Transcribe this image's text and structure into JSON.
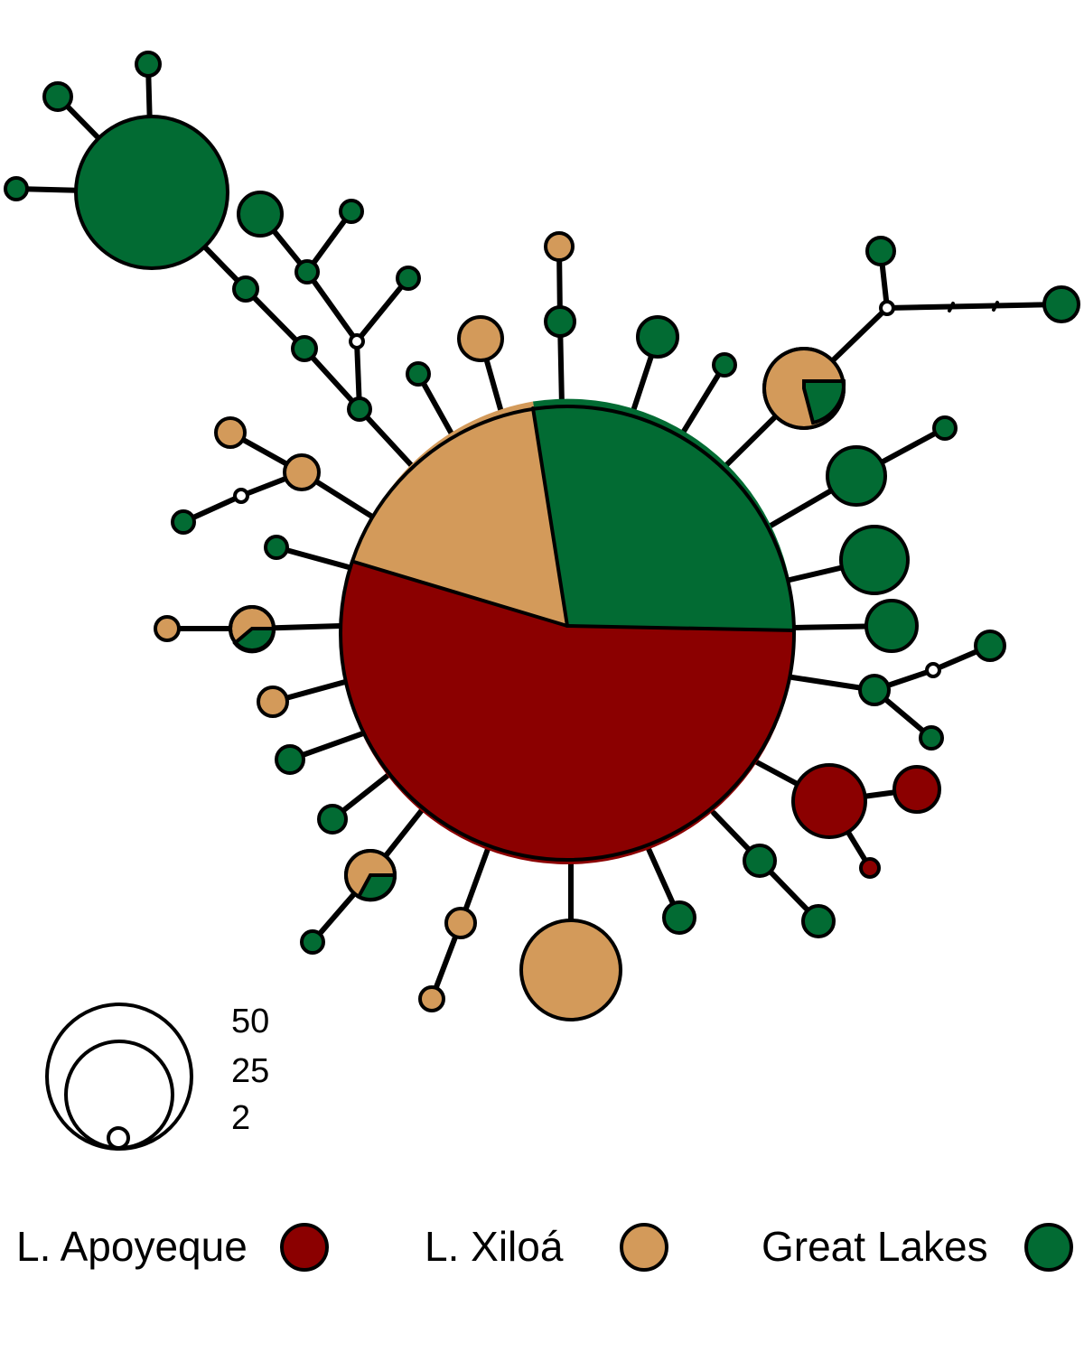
{
  "colors": {
    "apoyeque": "#8b0000",
    "xiloa": "#d39a5a",
    "great_lakes": "#026b33",
    "median_vector": "#ffffff"
  },
  "size_scale": {
    "labels": [
      "50",
      "25",
      "2"
    ]
  },
  "legend": [
    {
      "key": "apoyeque",
      "label": "L. Apoyeque"
    },
    {
      "key": "xiloa",
      "label": "L. Xiloá"
    },
    {
      "key": "great_lakes",
      "label": "Great Lakes"
    }
  ],
  "haplotypes": [
    {
      "id": "central",
      "composition": [
        {
          "group": "apoyeque",
          "fraction": 0.52
        },
        {
          "group": "xiloa",
          "fraction": 0.2
        },
        {
          "group": "great_lakes",
          "fraction": 0.28
        }
      ]
    },
    {
      "id": "gl-large-nw",
      "composition": [
        {
          "group": "great_lakes",
          "fraction": 1
        }
      ]
    },
    {
      "id": "xiloa-large-s",
      "composition": [
        {
          "group": "xiloa",
          "fraction": 1
        }
      ]
    },
    {
      "id": "apoyeque-se",
      "composition": [
        {
          "group": "apoyeque",
          "fraction": 1
        }
      ]
    },
    {
      "id": "mixed-ne",
      "composition": [
        {
          "group": "xiloa",
          "fraction": 0.75
        },
        {
          "group": "great_lakes",
          "fraction": 0.25
        }
      ]
    },
    {
      "id": "mixed-w",
      "composition": [
        {
          "group": "xiloa",
          "fraction": 0.65
        },
        {
          "group": "great_lakes",
          "fraction": 0.35
        }
      ]
    },
    {
      "id": "mixed-sw",
      "composition": [
        {
          "group": "xiloa",
          "fraction": 0.7
        },
        {
          "group": "great_lakes",
          "fraction": 0.3
        }
      ]
    }
  ]
}
